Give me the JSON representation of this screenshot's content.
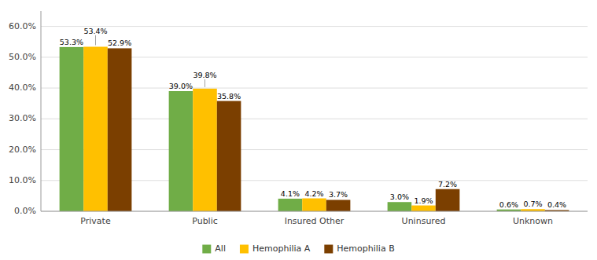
{
  "chart_data": {
    "type": "bar",
    "categories": [
      "Private",
      "Public",
      "Insured Other",
      "Uninsured",
      "Unknown"
    ],
    "series": [
      {
        "name": "All",
        "color": "#70AD47",
        "values": [
          53.3,
          39.0,
          4.1,
          3.0,
          0.6
        ],
        "value_labels": [
          "53.3%",
          "39.0%",
          "4.1%",
          "3.0%",
          "0.6%"
        ]
      },
      {
        "name": "Hemophilia A",
        "color": "#FFC000",
        "values": [
          53.4,
          39.8,
          4.2,
          1.9,
          0.7
        ],
        "value_labels": [
          "53.4%",
          "39.8%",
          "4.2%",
          "1.9%",
          "0.7%"
        ]
      },
      {
        "name": "Hemophilia B",
        "color": "#7B3F00",
        "values": [
          52.9,
          35.8,
          3.7,
          7.2,
          0.4
        ],
        "value_labels": [
          "52.9%",
          "35.8%",
          "3.7%",
          "7.2%",
          "0.4%"
        ]
      }
    ],
    "ylim": [
      0,
      65
    ],
    "yticks": [
      {
        "value": 0,
        "label": "0.0%"
      },
      {
        "value": 10,
        "label": "10.0%"
      },
      {
        "value": 20,
        "label": "20.0%"
      },
      {
        "value": 30,
        "label": "30.0%"
      },
      {
        "value": 40,
        "label": "40.0%"
      },
      {
        "value": 50,
        "label": "50.0%"
      },
      {
        "value": 60,
        "label": "60.0%"
      }
    ],
    "grid": true,
    "data_labels": true,
    "legend": "bottom"
  }
}
